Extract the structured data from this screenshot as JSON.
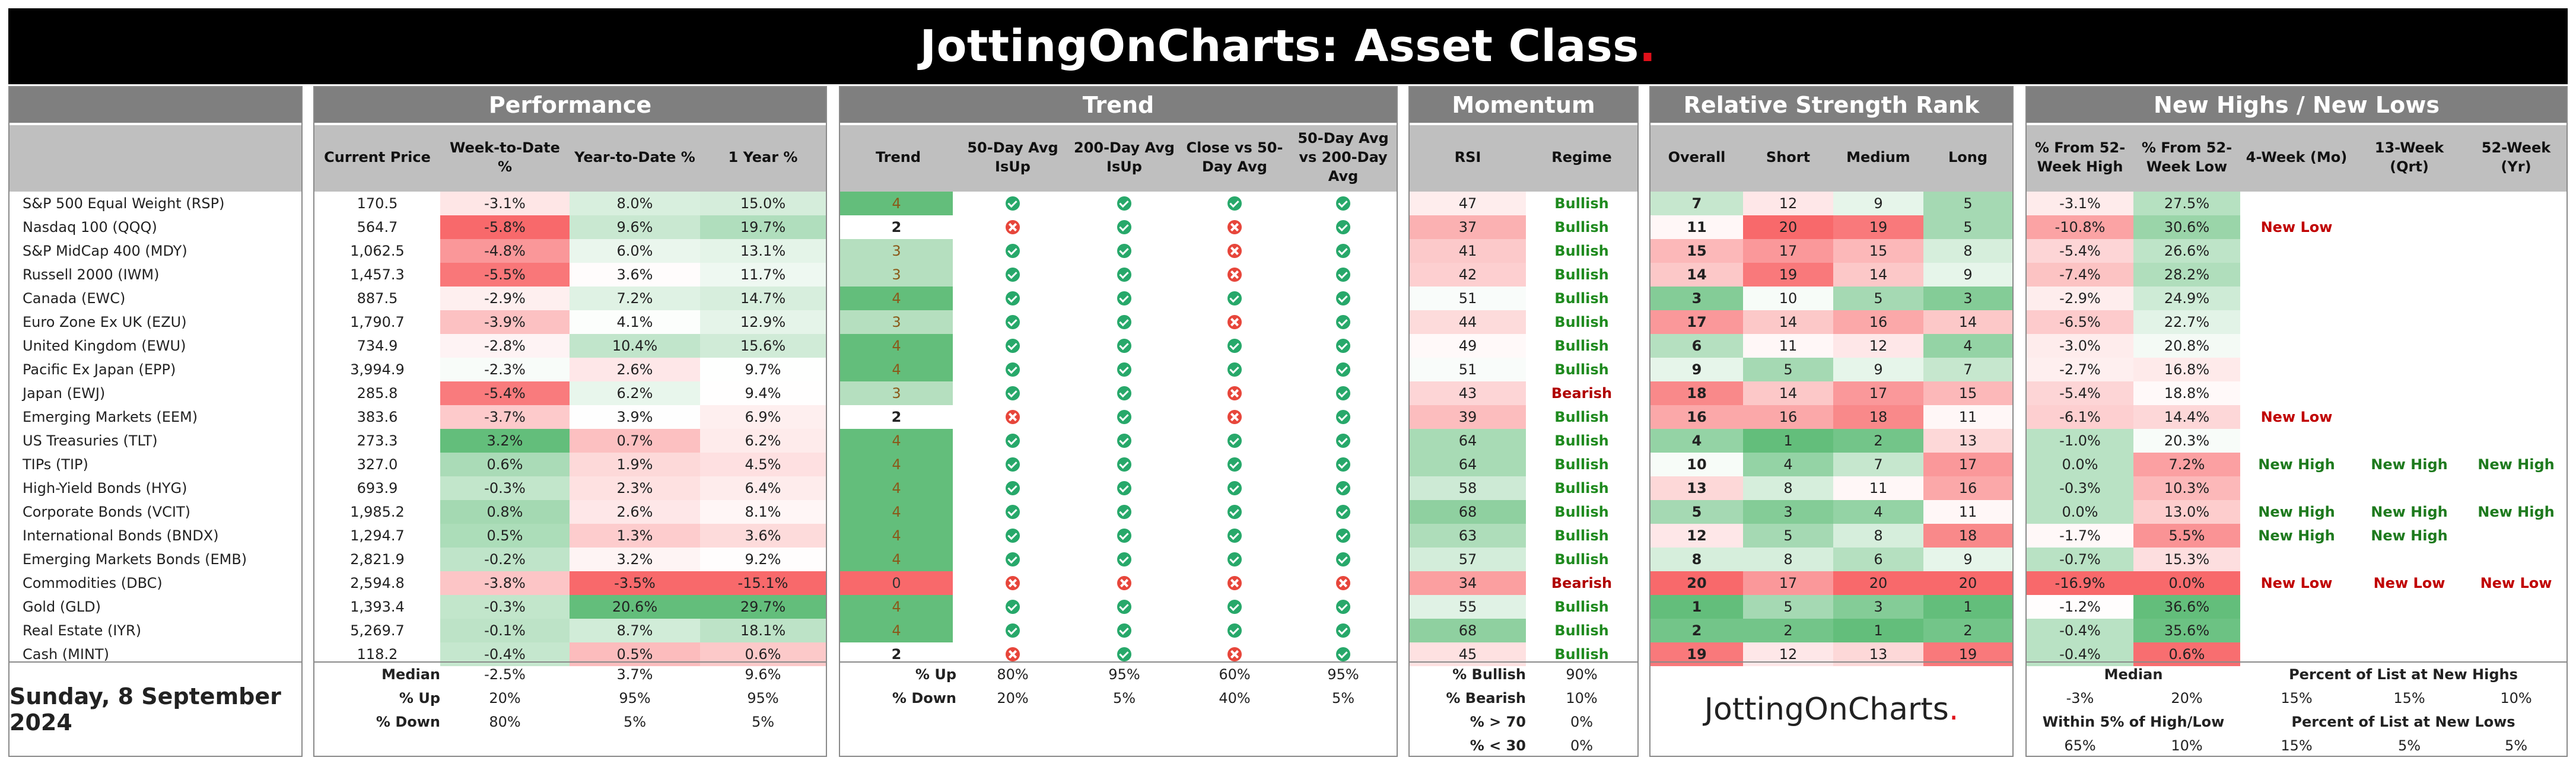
{
  "title": {
    "text": "JottingOnCharts: Asset Class",
    "dot": "."
  },
  "date": "Sunday, 8 September 2024",
  "brand": {
    "text": "JottingOnCharts",
    "dot": "."
  },
  "sections": {
    "performance": "Performance",
    "trend": "Trend",
    "momentum": "Momentum",
    "rsr": "Relative Strength Rank",
    "nhnl": "New Highs / New Lows"
  },
  "headers": {
    "performance": [
      "Current Price",
      "Week-to-Date %",
      "Year-to-Date %",
      "1 Year %"
    ],
    "trend": [
      "Trend",
      "50-Day Avg IsUp",
      "200-Day Avg IsUp",
      "Close vs 50-Day Avg",
      "50-Day Avg vs 200-Day Avg"
    ],
    "momentum": [
      "RSI",
      "Regime"
    ],
    "rsr": [
      "Overall",
      "Short",
      "Medium",
      "Long"
    ],
    "nhnl": [
      "% From 52-Week High",
      "% From 52-Week Low",
      "4-Week (Mo)",
      "13-Week (Qrt)",
      "52-Week (Yr)"
    ]
  },
  "colors": {
    "green": "#63be7b",
    "red": "#f8696b",
    "white": "#ffffff",
    "header": "#7f7f7f",
    "subheader": "#bfbfbf"
  },
  "rows": [
    {
      "name": "S&P 500 Equal Weight (RSP)",
      "price": "170.5",
      "wtd": "-3.1%",
      "ytd": "8.0%",
      "y1": "15.0%",
      "trend": "4",
      "a50": "up",
      "a200": "up",
      "c50": "up",
      "a50v200": "up",
      "rsi": "47",
      "regime": "Bullish",
      "overall": "7",
      "short": "12",
      "medium": "9",
      "long": "5",
      "fromHigh": "-3.1%",
      "fromLow": "27.5%",
      "w4": "",
      "w13": "",
      "w52": ""
    },
    {
      "name": "Nasdaq 100 (QQQ)",
      "price": "564.7",
      "wtd": "-5.8%",
      "ytd": "9.6%",
      "y1": "19.7%",
      "trend": "2",
      "a50": "down",
      "a200": "up",
      "c50": "down",
      "a50v200": "up",
      "rsi": "37",
      "regime": "Bullish",
      "overall": "11",
      "short": "20",
      "medium": "19",
      "long": "5",
      "fromHigh": "-10.8%",
      "fromLow": "30.6%",
      "w4": "New Low",
      "w13": "",
      "w52": ""
    },
    {
      "name": "S&P MidCap 400 (MDY)",
      "price": "1,062.5",
      "wtd": "-4.8%",
      "ytd": "6.0%",
      "y1": "13.1%",
      "trend": "3",
      "a50": "up",
      "a200": "up",
      "c50": "down",
      "a50v200": "up",
      "rsi": "41",
      "regime": "Bullish",
      "overall": "15",
      "short": "17",
      "medium": "15",
      "long": "8",
      "fromHigh": "-5.4%",
      "fromLow": "26.6%",
      "w4": "",
      "w13": "",
      "w52": ""
    },
    {
      "name": "Russell 2000 (IWM)",
      "price": "1,457.3",
      "wtd": "-5.5%",
      "ytd": "3.6%",
      "y1": "11.7%",
      "trend": "3",
      "a50": "up",
      "a200": "up",
      "c50": "down",
      "a50v200": "up",
      "rsi": "42",
      "regime": "Bullish",
      "overall": "14",
      "short": "19",
      "medium": "14",
      "long": "9",
      "fromHigh": "-7.4%",
      "fromLow": "28.2%",
      "w4": "",
      "w13": "",
      "w52": ""
    },
    {
      "name": "Canada  (EWC)",
      "price": "887.5",
      "wtd": "-2.9%",
      "ytd": "7.2%",
      "y1": "14.7%",
      "trend": "4",
      "a50": "up",
      "a200": "up",
      "c50": "up",
      "a50v200": "up",
      "rsi": "51",
      "regime": "Bullish",
      "overall": "3",
      "short": "10",
      "medium": "5",
      "long": "3",
      "fromHigh": "-2.9%",
      "fromLow": "24.9%",
      "w4": "",
      "w13": "",
      "w52": ""
    },
    {
      "name": "Euro Zone Ex UK (EZU)",
      "price": "1,790.7",
      "wtd": "-3.9%",
      "ytd": "4.1%",
      "y1": "12.9%",
      "trend": "3",
      "a50": "up",
      "a200": "up",
      "c50": "down",
      "a50v200": "up",
      "rsi": "44",
      "regime": "Bullish",
      "overall": "17",
      "short": "14",
      "medium": "16",
      "long": "14",
      "fromHigh": "-6.5%",
      "fromLow": "22.7%",
      "w4": "",
      "w13": "",
      "w52": ""
    },
    {
      "name": "United Kingdom (EWU)",
      "price": "734.9",
      "wtd": "-2.8%",
      "ytd": "10.4%",
      "y1": "15.6%",
      "trend": "4",
      "a50": "up",
      "a200": "up",
      "c50": "up",
      "a50v200": "up",
      "rsi": "49",
      "regime": "Bullish",
      "overall": "6",
      "short": "11",
      "medium": "12",
      "long": "4",
      "fromHigh": "-3.0%",
      "fromLow": "20.8%",
      "w4": "",
      "w13": "",
      "w52": ""
    },
    {
      "name": "Pacific Ex Japan (EPP)",
      "price": "3,994.9",
      "wtd": "-2.3%",
      "ytd": "2.6%",
      "y1": "9.7%",
      "trend": "4",
      "a50": "up",
      "a200": "up",
      "c50": "up",
      "a50v200": "up",
      "rsi": "51",
      "regime": "Bullish",
      "overall": "9",
      "short": "5",
      "medium": "9",
      "long": "7",
      "fromHigh": "-2.7%",
      "fromLow": "16.8%",
      "w4": "",
      "w13": "",
      "w52": ""
    },
    {
      "name": "Japan (EWJ)",
      "price": "285.8",
      "wtd": "-5.4%",
      "ytd": "6.2%",
      "y1": "9.4%",
      "trend": "3",
      "a50": "up",
      "a200": "up",
      "c50": "down",
      "a50v200": "up",
      "rsi": "43",
      "regime": "Bearish",
      "overall": "18",
      "short": "14",
      "medium": "17",
      "long": "15",
      "fromHigh": "-5.4%",
      "fromLow": "18.8%",
      "w4": "",
      "w13": "",
      "w52": ""
    },
    {
      "name": "Emerging Markets (EEM)",
      "price": "383.6",
      "wtd": "-3.7%",
      "ytd": "3.9%",
      "y1": "6.9%",
      "trend": "2",
      "a50": "down",
      "a200": "up",
      "c50": "down",
      "a50v200": "up",
      "rsi": "39",
      "regime": "Bullish",
      "overall": "16",
      "short": "16",
      "medium": "18",
      "long": "11",
      "fromHigh": "-6.1%",
      "fromLow": "14.4%",
      "w4": "New Low",
      "w13": "",
      "w52": ""
    },
    {
      "name": "US Treasuries (TLT)",
      "price": "273.3",
      "wtd": "3.2%",
      "ytd": "0.7%",
      "y1": "6.2%",
      "trend": "4",
      "a50": "up",
      "a200": "up",
      "c50": "up",
      "a50v200": "up",
      "rsi": "64",
      "regime": "Bullish",
      "overall": "4",
      "short": "1",
      "medium": "2",
      "long": "13",
      "fromHigh": "-1.0%",
      "fromLow": "20.3%",
      "w4": "",
      "w13": "",
      "w52": ""
    },
    {
      "name": "TIPs (TIP)",
      "price": "327.0",
      "wtd": "0.6%",
      "ytd": "1.9%",
      "y1": "4.5%",
      "trend": "4",
      "a50": "up",
      "a200": "up",
      "c50": "up",
      "a50v200": "up",
      "rsi": "64",
      "regime": "Bullish",
      "overall": "10",
      "short": "4",
      "medium": "7",
      "long": "17",
      "fromHigh": "0.0%",
      "fromLow": "7.2%",
      "w4": "New High",
      "w13": "New High",
      "w52": "New High"
    },
    {
      "name": "High-Yield Bonds (HYG)",
      "price": "693.9",
      "wtd": "-0.3%",
      "ytd": "2.3%",
      "y1": "6.4%",
      "trend": "4",
      "a50": "up",
      "a200": "up",
      "c50": "up",
      "a50v200": "up",
      "rsi": "58",
      "regime": "Bullish",
      "overall": "13",
      "short": "8",
      "medium": "11",
      "long": "16",
      "fromHigh": "-0.3%",
      "fromLow": "10.3%",
      "w4": "",
      "w13": "",
      "w52": ""
    },
    {
      "name": "Corporate Bonds (VCIT)",
      "price": "1,985.2",
      "wtd": "0.8%",
      "ytd": "2.6%",
      "y1": "8.1%",
      "trend": "4",
      "a50": "up",
      "a200": "up",
      "c50": "up",
      "a50v200": "up",
      "rsi": "68",
      "regime": "Bullish",
      "overall": "5",
      "short": "3",
      "medium": "4",
      "long": "11",
      "fromHigh": "0.0%",
      "fromLow": "13.0%",
      "w4": "New High",
      "w13": "New High",
      "w52": "New High"
    },
    {
      "name": "International Bonds (BNDX)",
      "price": "1,294.7",
      "wtd": "0.5%",
      "ytd": "1.3%",
      "y1": "3.6%",
      "trend": "4",
      "a50": "up",
      "a200": "up",
      "c50": "up",
      "a50v200": "up",
      "rsi": "63",
      "regime": "Bullish",
      "overall": "12",
      "short": "5",
      "medium": "8",
      "long": "18",
      "fromHigh": "-1.7%",
      "fromLow": "5.5%",
      "w4": "New High",
      "w13": "New High",
      "w52": ""
    },
    {
      "name": "Emerging Markets Bonds (EMB)",
      "price": "2,821.9",
      "wtd": "-0.2%",
      "ytd": "3.2%",
      "y1": "9.2%",
      "trend": "4",
      "a50": "up",
      "a200": "up",
      "c50": "up",
      "a50v200": "up",
      "rsi": "57",
      "regime": "Bullish",
      "overall": "8",
      "short": "8",
      "medium": "6",
      "long": "9",
      "fromHigh": "-0.7%",
      "fromLow": "15.3%",
      "w4": "",
      "w13": "",
      "w52": ""
    },
    {
      "name": "Commodities (DBC)",
      "price": "2,594.8",
      "wtd": "-3.8%",
      "ytd": "-3.5%",
      "y1": "-15.1%",
      "trend": "0",
      "a50": "down",
      "a200": "down",
      "c50": "down",
      "a50v200": "down",
      "rsi": "34",
      "regime": "Bearish",
      "overall": "20",
      "short": "17",
      "medium": "20",
      "long": "20",
      "fromHigh": "-16.9%",
      "fromLow": "0.0%",
      "w4": "New Low",
      "w13": "New Low",
      "w52": "New Low"
    },
    {
      "name": "Gold (GLD)",
      "price": "1,393.4",
      "wtd": "-0.3%",
      "ytd": "20.6%",
      "y1": "29.7%",
      "trend": "4",
      "a50": "up",
      "a200": "up",
      "c50": "up",
      "a50v200": "up",
      "rsi": "55",
      "regime": "Bullish",
      "overall": "1",
      "short": "5",
      "medium": "3",
      "long": "1",
      "fromHigh": "-1.2%",
      "fromLow": "36.6%",
      "w4": "",
      "w13": "",
      "w52": ""
    },
    {
      "name": "Real Estate (IYR)",
      "price": "5,269.7",
      "wtd": "-0.1%",
      "ytd": "8.7%",
      "y1": "18.1%",
      "trend": "4",
      "a50": "up",
      "a200": "up",
      "c50": "up",
      "a50v200": "up",
      "rsi": "68",
      "regime": "Bullish",
      "overall": "2",
      "short": "2",
      "medium": "1",
      "long": "2",
      "fromHigh": "-0.4%",
      "fromLow": "35.6%",
      "w4": "",
      "w13": "",
      "w52": ""
    },
    {
      "name": "Cash (MINT)",
      "price": "118.2",
      "wtd": "-0.4%",
      "ytd": "0.5%",
      "y1": "0.6%",
      "trend": "2",
      "a50": "down",
      "a200": "up",
      "c50": "down",
      "a50v200": "up",
      "rsi": "45",
      "regime": "Bullish",
      "overall": "19",
      "short": "12",
      "medium": "13",
      "long": "19",
      "fromHigh": "-0.4%",
      "fromLow": "0.6%",
      "w4": "",
      "w13": "",
      "w52": ""
    }
  ],
  "footer": {
    "performance": {
      "labels": [
        "Median",
        "% Up",
        "% Down"
      ],
      "values": [
        [
          "-2.5%",
          "3.7%",
          "9.6%"
        ],
        [
          "20%",
          "95%",
          "95%"
        ],
        [
          "80%",
          "5%",
          "5%"
        ]
      ]
    },
    "trend": {
      "labels": [
        "% Up",
        "% Down"
      ],
      "values": [
        [
          "80%",
          "95%",
          "60%",
          "95%"
        ],
        [
          "20%",
          "5%",
          "40%",
          "5%"
        ]
      ]
    },
    "momentum": {
      "labels": [
        "% Bullish",
        "% Bearish",
        "% > 70",
        "% < 30"
      ],
      "values": [
        "90%",
        "10%",
        "0%",
        "0%"
      ]
    },
    "nhnl": {
      "median_label": "Median",
      "median_values": [
        "-3%",
        "20%"
      ],
      "within_label": "Within 5% of High/Low",
      "within_values": [
        "65%",
        "10%"
      ],
      "pct_highs_label": "Percent of List at New Highs",
      "pct_highs_values": [
        "15%",
        "15%",
        "10%"
      ],
      "pct_lows_label": "Percent of List at New Lows",
      "pct_lows_values": [
        "15%",
        "5%",
        "5%"
      ]
    }
  }
}
